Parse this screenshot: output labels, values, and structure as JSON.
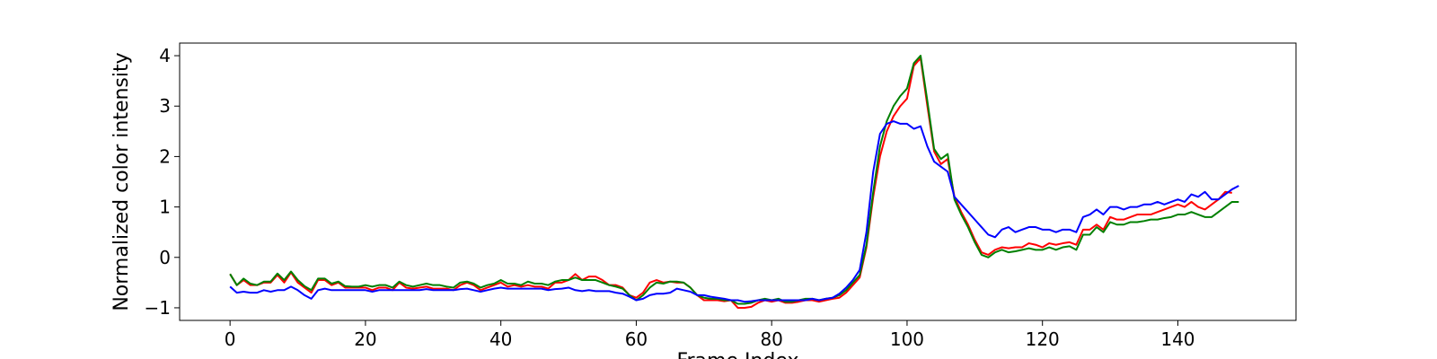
{
  "chart_data": {
    "type": "line",
    "title": "",
    "xlabel": "Frame Index",
    "ylabel": "Normalized color intensity",
    "xlim": [
      -7.45,
      157.45
    ],
    "ylim": [
      -1.25,
      4.25
    ],
    "xticks": [
      0,
      20,
      40,
      60,
      80,
      100,
      120,
      140
    ],
    "yticks": [
      -1,
      0,
      1,
      2,
      3,
      4
    ],
    "grid": false,
    "legend": "none",
    "series": [
      {
        "color": "#ff0000",
        "values": [
          -0.33,
          -0.55,
          -0.45,
          -0.55,
          -0.55,
          -0.5,
          -0.5,
          -0.35,
          -0.5,
          -0.3,
          -0.5,
          -0.6,
          -0.7,
          -0.45,
          -0.45,
          -0.55,
          -0.5,
          -0.6,
          -0.6,
          -0.6,
          -0.6,
          -0.65,
          -0.6,
          -0.6,
          -0.65,
          -0.5,
          -0.6,
          -0.62,
          -0.6,
          -0.58,
          -0.62,
          -0.62,
          -0.62,
          -0.65,
          -0.55,
          -0.5,
          -0.55,
          -0.65,
          -0.6,
          -0.55,
          -0.5,
          -0.58,
          -0.55,
          -0.58,
          -0.55,
          -0.58,
          -0.58,
          -0.62,
          -0.5,
          -0.5,
          -0.45,
          -0.33,
          -0.45,
          -0.38,
          -0.38,
          -0.45,
          -0.55,
          -0.55,
          -0.6,
          -0.75,
          -0.8,
          -0.7,
          -0.5,
          -0.45,
          -0.5,
          -0.48,
          -0.5,
          -0.5,
          -0.6,
          -0.75,
          -0.85,
          -0.85,
          -0.85,
          -0.87,
          -0.85,
          -1.0,
          -1.0,
          -0.98,
          -0.9,
          -0.85,
          -0.88,
          -0.85,
          -0.9,
          -0.9,
          -0.88,
          -0.85,
          -0.85,
          -0.88,
          -0.85,
          -0.82,
          -0.8,
          -0.7,
          -0.55,
          -0.4,
          0.2,
          1.2,
          2.0,
          2.5,
          2.8,
          3.0,
          3.15,
          3.8,
          3.95,
          3.0,
          2.1,
          1.85,
          1.95,
          1.2,
          0.9,
          0.65,
          0.35,
          0.1,
          0.05,
          0.15,
          0.2,
          0.18,
          0.2,
          0.2,
          0.28,
          0.25,
          0.2,
          0.28,
          0.25,
          0.28,
          0.3,
          0.25,
          0.55,
          0.55,
          0.65,
          0.55,
          0.8,
          0.75,
          0.75,
          0.8,
          0.85,
          0.85,
          0.85,
          0.9,
          0.95,
          1.0,
          1.05,
          1.0,
          1.1,
          1.0,
          0.95,
          1.05,
          1.15,
          1.3,
          1.28
        ]
      },
      {
        "color": "#008000",
        "values": [
          -0.33,
          -0.55,
          -0.42,
          -0.52,
          -0.55,
          -0.48,
          -0.48,
          -0.32,
          -0.45,
          -0.28,
          -0.45,
          -0.57,
          -0.65,
          -0.42,
          -0.42,
          -0.52,
          -0.48,
          -0.57,
          -0.58,
          -0.58,
          -0.55,
          -0.58,
          -0.55,
          -0.55,
          -0.6,
          -0.48,
          -0.55,
          -0.58,
          -0.55,
          -0.52,
          -0.55,
          -0.55,
          -0.58,
          -0.6,
          -0.5,
          -0.48,
          -0.52,
          -0.6,
          -0.55,
          -0.52,
          -0.45,
          -0.52,
          -0.52,
          -0.55,
          -0.48,
          -0.52,
          -0.52,
          -0.55,
          -0.48,
          -0.45,
          -0.45,
          -0.4,
          -0.45,
          -0.45,
          -0.45,
          -0.5,
          -0.55,
          -0.58,
          -0.62,
          -0.75,
          -0.85,
          -0.75,
          -0.6,
          -0.5,
          -0.52,
          -0.48,
          -0.48,
          -0.5,
          -0.6,
          -0.75,
          -0.8,
          -0.82,
          -0.82,
          -0.85,
          -0.85,
          -0.92,
          -0.92,
          -0.9,
          -0.85,
          -0.82,
          -0.85,
          -0.82,
          -0.88,
          -0.88,
          -0.85,
          -0.82,
          -0.82,
          -0.85,
          -0.82,
          -0.8,
          -0.75,
          -0.65,
          -0.5,
          -0.35,
          0.25,
          1.3,
          2.2,
          2.7,
          3.0,
          3.2,
          3.35,
          3.85,
          4.0,
          3.1,
          2.15,
          1.95,
          2.05,
          1.15,
          0.85,
          0.6,
          0.3,
          0.05,
          0.0,
          0.1,
          0.15,
          0.1,
          0.12,
          0.15,
          0.18,
          0.15,
          0.15,
          0.2,
          0.15,
          0.2,
          0.22,
          0.15,
          0.45,
          0.45,
          0.6,
          0.5,
          0.7,
          0.65,
          0.65,
          0.7,
          0.7,
          0.72,
          0.75,
          0.75,
          0.78,
          0.8,
          0.85,
          0.85,
          0.9,
          0.85,
          0.8,
          0.8,
          0.9,
          1.0,
          1.1,
          1.1
        ]
      },
      {
        "color": "#0000ff",
        "values": [
          -0.58,
          -0.7,
          -0.68,
          -0.7,
          -0.7,
          -0.65,
          -0.68,
          -0.65,
          -0.65,
          -0.58,
          -0.65,
          -0.75,
          -0.82,
          -0.65,
          -0.62,
          -0.65,
          -0.65,
          -0.65,
          -0.65,
          -0.65,
          -0.65,
          -0.68,
          -0.65,
          -0.65,
          -0.65,
          -0.65,
          -0.65,
          -0.65,
          -0.65,
          -0.63,
          -0.65,
          -0.65,
          -0.65,
          -0.65,
          -0.63,
          -0.62,
          -0.65,
          -0.68,
          -0.65,
          -0.62,
          -0.6,
          -0.62,
          -0.62,
          -0.62,
          -0.62,
          -0.62,
          -0.62,
          -0.65,
          -0.63,
          -0.62,
          -0.6,
          -0.65,
          -0.67,
          -0.65,
          -0.67,
          -0.67,
          -0.67,
          -0.7,
          -0.72,
          -0.78,
          -0.85,
          -0.82,
          -0.75,
          -0.72,
          -0.72,
          -0.7,
          -0.62,
          -0.65,
          -0.68,
          -0.75,
          -0.75,
          -0.78,
          -0.8,
          -0.82,
          -0.85,
          -0.85,
          -0.88,
          -0.87,
          -0.85,
          -0.85,
          -0.85,
          -0.85,
          -0.85,
          -0.85,
          -0.85,
          -0.85,
          -0.82,
          -0.85,
          -0.82,
          -0.8,
          -0.72,
          -0.6,
          -0.45,
          -0.25,
          0.5,
          1.7,
          2.45,
          2.65,
          2.7,
          2.65,
          2.65,
          2.55,
          2.6,
          2.2,
          1.9,
          1.8,
          1.7,
          1.2,
          1.05,
          0.9,
          0.75,
          0.6,
          0.45,
          0.4,
          0.55,
          0.6,
          0.5,
          0.55,
          0.6,
          0.6,
          0.55,
          0.55,
          0.5,
          0.55,
          0.55,
          0.5,
          0.8,
          0.85,
          0.95,
          0.85,
          1.0,
          1.0,
          0.95,
          1.0,
          1.0,
          1.05,
          1.05,
          1.1,
          1.05,
          1.1,
          1.15,
          1.1,
          1.25,
          1.2,
          1.3,
          1.15,
          1.15,
          1.25,
          1.35,
          1.42
        ]
      }
    ]
  }
}
